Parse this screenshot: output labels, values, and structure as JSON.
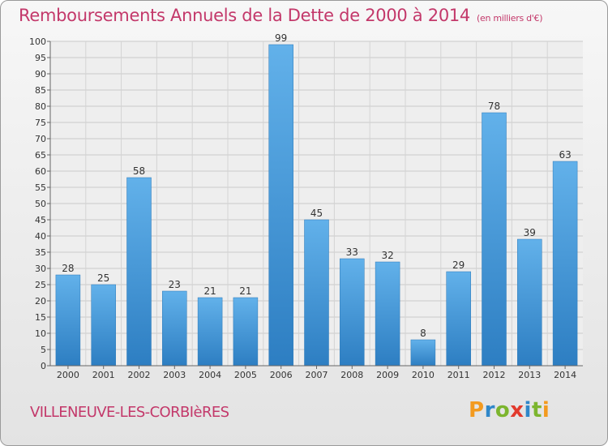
{
  "chart_data": {
    "type": "bar",
    "title": "Remboursements Annuels de la Dette de 2000 à 2014",
    "unit_note": "(en milliers d'€)",
    "categories": [
      "2000",
      "2001",
      "2002",
      "2003",
      "2004",
      "2005",
      "2006",
      "2007",
      "2008",
      "2009",
      "2010",
      "2011",
      "2012",
      "2013",
      "2014"
    ],
    "values": [
      28,
      25,
      58,
      23,
      21,
      21,
      99,
      45,
      33,
      32,
      8,
      29,
      78,
      39,
      63
    ],
    "ylim": [
      0,
      100
    ],
    "ytick_step": 5,
    "xlabel": "",
    "ylabel": "",
    "grid": true,
    "bar_color_light": "#62b1ea",
    "bar_color_dark": "#2d7ec2"
  },
  "footer": {
    "commune": "VILLENEUVE-LES-CORBIèRES",
    "logo_letters": [
      "P",
      "r",
      "o",
      "x",
      "i",
      "t",
      "i"
    ]
  }
}
